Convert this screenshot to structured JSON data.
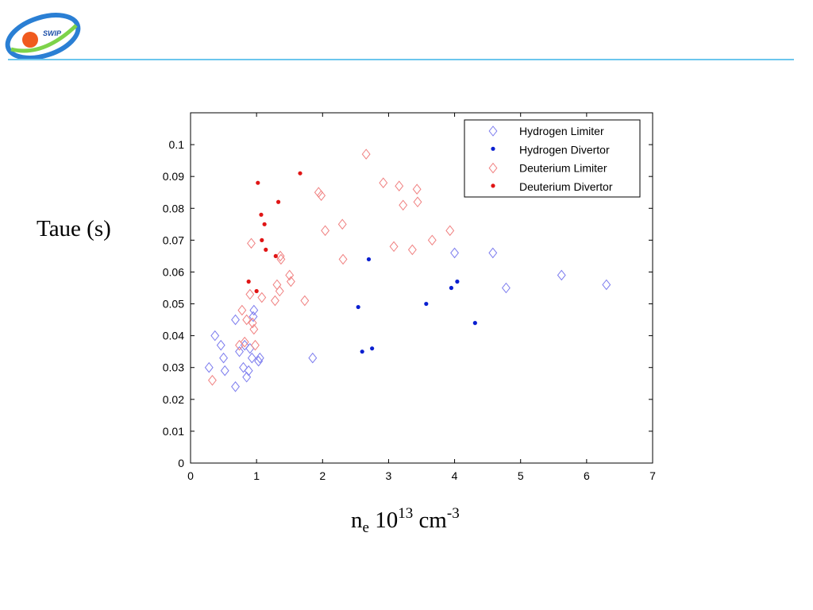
{
  "logo": {
    "text": "SWIP",
    "colors": {
      "ring": "#2a7fd4",
      "swoosh": "#7dd34a",
      "ball": "#f05a1e"
    }
  },
  "header_line_color": "#6cc6ee",
  "axis_labels": {
    "y": "Taue (s)",
    "x_main": "n",
    "x_sub": "e",
    "x_mid": " 10",
    "x_sup1": "13",
    "x_unit": " cm",
    "x_sup2": "-3"
  },
  "chart_data": {
    "type": "scatter",
    "title": "",
    "xlabel": "n_e 10^13 cm^-3",
    "ylabel": "Taue (s)",
    "xlim": [
      0,
      7
    ],
    "ylim": [
      0,
      0.11
    ],
    "xticks": [
      "0",
      "1",
      "2",
      "3",
      "4",
      "5",
      "6",
      "7"
    ],
    "yticks": [
      "0",
      "0.01",
      "0.02",
      "0.03",
      "0.04",
      "0.05",
      "0.06",
      "0.07",
      "0.08",
      "0.09",
      "0.1"
    ],
    "grid": false,
    "legend_position": "top-right",
    "series": [
      {
        "name": "Hydrogen Limiter",
        "marker": "diamond-open",
        "color": "#7b7bee",
        "points": [
          [
            0.28,
            0.03
          ],
          [
            0.37,
            0.04
          ],
          [
            0.46,
            0.037
          ],
          [
            0.5,
            0.033
          ],
          [
            0.52,
            0.029
          ],
          [
            0.68,
            0.024
          ],
          [
            0.68,
            0.045
          ],
          [
            0.74,
            0.035
          ],
          [
            0.8,
            0.03
          ],
          [
            0.82,
            0.037
          ],
          [
            0.85,
            0.027
          ],
          [
            0.88,
            0.029
          ],
          [
            0.9,
            0.036
          ],
          [
            0.93,
            0.033
          ],
          [
            0.95,
            0.046
          ],
          [
            0.96,
            0.048
          ],
          [
            1.03,
            0.032
          ],
          [
            1.05,
            0.033
          ],
          [
            1.85,
            0.033
          ],
          [
            4.0,
            0.066
          ],
          [
            4.58,
            0.066
          ],
          [
            4.78,
            0.055
          ],
          [
            5.62,
            0.059
          ],
          [
            6.3,
            0.056
          ]
        ]
      },
      {
        "name": "Hydrogen Divertor",
        "marker": "dot",
        "color": "#0a1fd0",
        "points": [
          [
            2.54,
            0.049
          ],
          [
            2.6,
            0.035
          ],
          [
            2.7,
            0.064
          ],
          [
            2.75,
            0.036
          ],
          [
            3.57,
            0.05
          ],
          [
            3.95,
            0.055
          ],
          [
            4.04,
            0.057
          ],
          [
            4.31,
            0.044
          ]
        ]
      },
      {
        "name": "Deuterium Limiter",
        "marker": "diamond-open",
        "color": "#f08080",
        "points": [
          [
            0.33,
            0.026
          ],
          [
            0.74,
            0.037
          ],
          [
            0.78,
            0.048
          ],
          [
            0.82,
            0.038
          ],
          [
            0.85,
            0.045
          ],
          [
            0.9,
            0.053
          ],
          [
            0.92,
            0.069
          ],
          [
            0.94,
            0.044
          ],
          [
            0.96,
            0.042
          ],
          [
            0.98,
            0.037
          ],
          [
            1.08,
            0.052
          ],
          [
            1.28,
            0.051
          ],
          [
            1.31,
            0.056
          ],
          [
            1.35,
            0.054
          ],
          [
            1.36,
            0.065
          ],
          [
            1.37,
            0.064
          ],
          [
            1.5,
            0.059
          ],
          [
            1.52,
            0.057
          ],
          [
            1.73,
            0.051
          ],
          [
            1.94,
            0.085
          ],
          [
            1.98,
            0.084
          ],
          [
            2.04,
            0.073
          ],
          [
            2.3,
            0.075
          ],
          [
            2.31,
            0.064
          ],
          [
            2.66,
            0.097
          ],
          [
            2.92,
            0.088
          ],
          [
            3.08,
            0.068
          ],
          [
            3.16,
            0.087
          ],
          [
            3.22,
            0.081
          ],
          [
            3.36,
            0.067
          ],
          [
            3.43,
            0.086
          ],
          [
            3.44,
            0.082
          ],
          [
            3.66,
            0.07
          ],
          [
            3.93,
            0.073
          ]
        ]
      },
      {
        "name": "Deuterium Divertor",
        "marker": "dot",
        "color": "#e01515",
        "points": [
          [
            0.88,
            0.057
          ],
          [
            1.0,
            0.054
          ],
          [
            1.02,
            0.088
          ],
          [
            1.07,
            0.078
          ],
          [
            1.08,
            0.07
          ],
          [
            1.12,
            0.075
          ],
          [
            1.14,
            0.067
          ],
          [
            1.29,
            0.065
          ],
          [
            1.33,
            0.082
          ],
          [
            1.66,
            0.091
          ]
        ]
      }
    ]
  }
}
